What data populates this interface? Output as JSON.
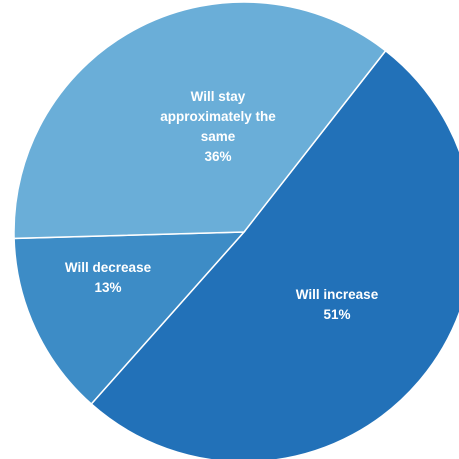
{
  "chart_data": {
    "type": "pie",
    "slices": [
      {
        "label": "Will increase",
        "value": 51,
        "value_label": "51%",
        "color": "#2271B8"
      },
      {
        "label": "Will decrease",
        "value": 13,
        "value_label": "13%",
        "color": "#3D8CC6"
      },
      {
        "label": "Will stay approximately the same",
        "value": 36,
        "value_label": "36%",
        "color": "#6AAED8"
      }
    ],
    "start_angle_deg": 52,
    "direction": "clockwise",
    "legend": "none",
    "data_labels": "inside"
  }
}
